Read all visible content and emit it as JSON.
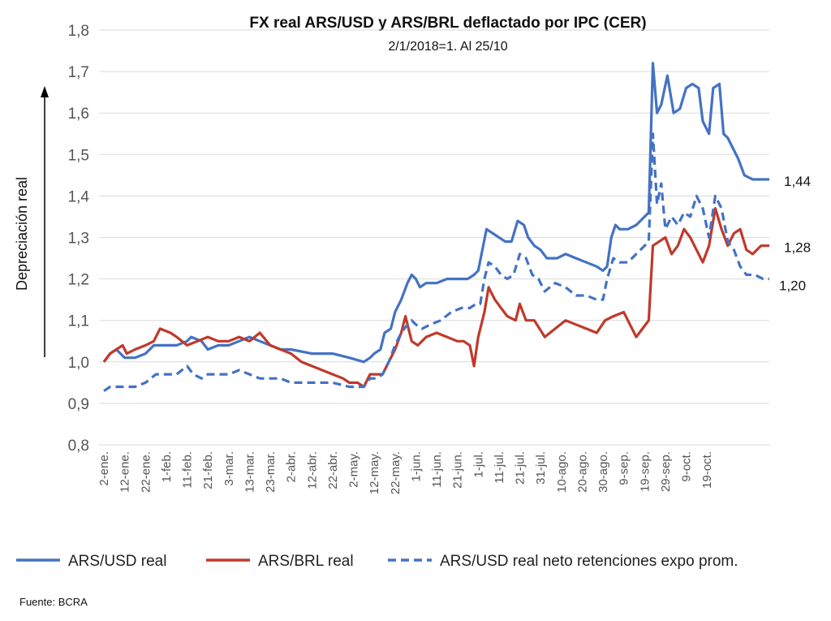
{
  "chart_data": {
    "type": "line",
    "title": "FX real ARS/USD y ARS/BRL deflactado por IPC (CER)",
    "subtitle": "2/1/2018=1.  Al 25/10",
    "ylabel": "Depreciación real",
    "ylim": [
      0.8,
      1.8
    ],
    "yticks": [
      "0,8",
      "0,9",
      "1,0",
      "1,1",
      "1,2",
      "1,3",
      "1,4",
      "1,5",
      "1,6",
      "1,7",
      "1,8"
    ],
    "ytick_values": [
      0.8,
      0.9,
      1.0,
      1.1,
      1.2,
      1.3,
      1.4,
      1.5,
      1.6,
      1.7,
      1.8
    ],
    "x_range_days": [
      0,
      296
    ],
    "x_tick_labels": [
      "2-ene.",
      "12-ene.",
      "22-ene.",
      "1-feb.",
      "11-feb.",
      "21-feb.",
      "3-mar.",
      "13-mar.",
      "23-mar.",
      "2-abr.",
      "12-abr.",
      "22-abr.",
      "2-may.",
      "12-may.",
      "22-may.",
      "1-jun.",
      "11-jun.",
      "21-jun.",
      "1-jul.",
      "11-jul.",
      "21-jul.",
      "31-jul.",
      "10-ago.",
      "20-ago.",
      "30-ago.",
      "9-sep.",
      "19-sep.",
      "29-sep.",
      "9-oct.",
      "19-oct."
    ],
    "grid": "horizontal",
    "legend_position": "bottom",
    "series": [
      {
        "name": "ARS/USD real",
        "color": "#4472C4",
        "dash": "solid",
        "end_label": "1,44",
        "points": [
          [
            0,
            1.0
          ],
          [
            3,
            1.02
          ],
          [
            6,
            1.03
          ],
          [
            10,
            1.01
          ],
          [
            15,
            1.01
          ],
          [
            20,
            1.02
          ],
          [
            24,
            1.04
          ],
          [
            30,
            1.04
          ],
          [
            35,
            1.04
          ],
          [
            40,
            1.05
          ],
          [
            42,
            1.06
          ],
          [
            47,
            1.05
          ],
          [
            50,
            1.03
          ],
          [
            55,
            1.04
          ],
          [
            60,
            1.04
          ],
          [
            65,
            1.05
          ],
          [
            70,
            1.06
          ],
          [
            75,
            1.05
          ],
          [
            80,
            1.04
          ],
          [
            85,
            1.03
          ],
          [
            90,
            1.03
          ],
          [
            100,
            1.02
          ],
          [
            110,
            1.02
          ],
          [
            118,
            1.01
          ],
          [
            125,
            1.0
          ],
          [
            128,
            1.01
          ],
          [
            130,
            1.02
          ],
          [
            133,
            1.03
          ],
          [
            135,
            1.07
          ],
          [
            138,
            1.08
          ],
          [
            140,
            1.12
          ],
          [
            143,
            1.15
          ],
          [
            146,
            1.19
          ],
          [
            148,
            1.21
          ],
          [
            150,
            1.2
          ],
          [
            152,
            1.18
          ],
          [
            155,
            1.19
          ],
          [
            160,
            1.19
          ],
          [
            165,
            1.2
          ],
          [
            170,
            1.2
          ],
          [
            175,
            1.2
          ],
          [
            178,
            1.21
          ],
          [
            180,
            1.22
          ],
          [
            182,
            1.27
          ],
          [
            184,
            1.32
          ],
          [
            187,
            1.31
          ],
          [
            190,
            1.3
          ],
          [
            193,
            1.29
          ],
          [
            196,
            1.29
          ],
          [
            199,
            1.34
          ],
          [
            202,
            1.33
          ],
          [
            204,
            1.3
          ],
          [
            207,
            1.28
          ],
          [
            210,
            1.27
          ],
          [
            213,
            1.25
          ],
          [
            218,
            1.25
          ],
          [
            222,
            1.26
          ],
          [
            227,
            1.25
          ],
          [
            232,
            1.24
          ],
          [
            237,
            1.23
          ],
          [
            240,
            1.22
          ],
          [
            242,
            1.23
          ],
          [
            244,
            1.3
          ],
          [
            246,
            1.33
          ],
          [
            248,
            1.32
          ],
          [
            252,
            1.32
          ],
          [
            256,
            1.33
          ],
          [
            260,
            1.35
          ],
          [
            262,
            1.36
          ],
          [
            264,
            1.72
          ],
          [
            266,
            1.6
          ],
          [
            268,
            1.62
          ],
          [
            271,
            1.69
          ],
          [
            274,
            1.6
          ],
          [
            277,
            1.61
          ],
          [
            280,
            1.66
          ],
          [
            283,
            1.67
          ],
          [
            286,
            1.66
          ],
          [
            288,
            1.58
          ],
          [
            291,
            1.55
          ],
          [
            293,
            1.66
          ],
          [
            296,
            1.67
          ],
          [
            298,
            1.55
          ],
          [
            300,
            1.54
          ],
          [
            302,
            1.52
          ],
          [
            305,
            1.49
          ],
          [
            308,
            1.45
          ],
          [
            312,
            1.44
          ],
          [
            316,
            1.44
          ],
          [
            320,
            1.44
          ]
        ]
      },
      {
        "name": "ARS/BRL real",
        "color": "#C0392B",
        "dash": "solid",
        "end_label": "1,28",
        "points": [
          [
            0,
            1.0
          ],
          [
            3,
            1.02
          ],
          [
            6,
            1.03
          ],
          [
            9,
            1.04
          ],
          [
            11,
            1.02
          ],
          [
            15,
            1.03
          ],
          [
            20,
            1.04
          ],
          [
            24,
            1.05
          ],
          [
            27,
            1.08
          ],
          [
            32,
            1.07
          ],
          [
            35,
            1.06
          ],
          [
            40,
            1.04
          ],
          [
            45,
            1.05
          ],
          [
            50,
            1.06
          ],
          [
            55,
            1.05
          ],
          [
            60,
            1.05
          ],
          [
            65,
            1.06
          ],
          [
            70,
            1.05
          ],
          [
            75,
            1.07
          ],
          [
            80,
            1.04
          ],
          [
            85,
            1.03
          ],
          [
            90,
            1.02
          ],
          [
            95,
            1.0
          ],
          [
            100,
            0.99
          ],
          [
            105,
            0.98
          ],
          [
            110,
            0.97
          ],
          [
            115,
            0.96
          ],
          [
            118,
            0.95
          ],
          [
            122,
            0.95
          ],
          [
            125,
            0.94
          ],
          [
            128,
            0.97
          ],
          [
            131,
            0.97
          ],
          [
            134,
            0.97
          ],
          [
            137,
            1.0
          ],
          [
            140,
            1.03
          ],
          [
            143,
            1.07
          ],
          [
            145,
            1.11
          ],
          [
            148,
            1.05
          ],
          [
            151,
            1.04
          ],
          [
            155,
            1.06
          ],
          [
            160,
            1.07
          ],
          [
            165,
            1.06
          ],
          [
            170,
            1.05
          ],
          [
            173,
            1.05
          ],
          [
            176,
            1.04
          ],
          [
            178,
            0.99
          ],
          [
            180,
            1.06
          ],
          [
            183,
            1.12
          ],
          [
            185,
            1.18
          ],
          [
            188,
            1.15
          ],
          [
            191,
            1.13
          ],
          [
            194,
            1.11
          ],
          [
            198,
            1.1
          ],
          [
            200,
            1.14
          ],
          [
            203,
            1.1
          ],
          [
            207,
            1.1
          ],
          [
            212,
            1.06
          ],
          [
            217,
            1.08
          ],
          [
            222,
            1.1
          ],
          [
            227,
            1.09
          ],
          [
            232,
            1.08
          ],
          [
            237,
            1.07
          ],
          [
            241,
            1.1
          ],
          [
            245,
            1.11
          ],
          [
            250,
            1.12
          ],
          [
            253,
            1.09
          ],
          [
            256,
            1.06
          ],
          [
            259,
            1.08
          ],
          [
            262,
            1.1
          ],
          [
            264,
            1.28
          ],
          [
            267,
            1.29
          ],
          [
            270,
            1.3
          ],
          [
            273,
            1.26
          ],
          [
            276,
            1.28
          ],
          [
            279,
            1.32
          ],
          [
            282,
            1.3
          ],
          [
            285,
            1.27
          ],
          [
            288,
            1.24
          ],
          [
            291,
            1.28
          ],
          [
            294,
            1.37
          ],
          [
            297,
            1.32
          ],
          [
            300,
            1.28
          ],
          [
            303,
            1.31
          ],
          [
            306,
            1.32
          ],
          [
            309,
            1.27
          ],
          [
            312,
            1.26
          ],
          [
            316,
            1.28
          ],
          [
            320,
            1.28
          ]
        ]
      },
      {
        "name": "ARS/USD real neto retenciones expo prom.",
        "color": "#4472C4",
        "dash": "dashed",
        "end_label": "1,20",
        "points": [
          [
            0,
            0.93
          ],
          [
            3,
            0.94
          ],
          [
            6,
            0.94
          ],
          [
            10,
            0.94
          ],
          [
            15,
            0.94
          ],
          [
            20,
            0.95
          ],
          [
            25,
            0.97
          ],
          [
            30,
            0.97
          ],
          [
            35,
            0.97
          ],
          [
            40,
            0.99
          ],
          [
            43,
            0.97
          ],
          [
            47,
            0.96
          ],
          [
            50,
            0.97
          ],
          [
            55,
            0.97
          ],
          [
            60,
            0.97
          ],
          [
            65,
            0.98
          ],
          [
            70,
            0.97
          ],
          [
            75,
            0.96
          ],
          [
            80,
            0.96
          ],
          [
            85,
            0.96
          ],
          [
            90,
            0.95
          ],
          [
            100,
            0.95
          ],
          [
            110,
            0.95
          ],
          [
            118,
            0.94
          ],
          [
            125,
            0.94
          ],
          [
            128,
            0.96
          ],
          [
            131,
            0.96
          ],
          [
            134,
            0.97
          ],
          [
            137,
            1.0
          ],
          [
            140,
            1.04
          ],
          [
            143,
            1.07
          ],
          [
            146,
            1.09
          ],
          [
            148,
            1.1
          ],
          [
            150,
            1.09
          ],
          [
            153,
            1.08
          ],
          [
            157,
            1.09
          ],
          [
            162,
            1.1
          ],
          [
            167,
            1.12
          ],
          [
            172,
            1.13
          ],
          [
            176,
            1.13
          ],
          [
            179,
            1.14
          ],
          [
            181,
            1.14
          ],
          [
            183,
            1.2
          ],
          [
            185,
            1.24
          ],
          [
            188,
            1.23
          ],
          [
            191,
            1.21
          ],
          [
            194,
            1.2
          ],
          [
            197,
            1.21
          ],
          [
            200,
            1.26
          ],
          [
            203,
            1.25
          ],
          [
            206,
            1.21
          ],
          [
            209,
            1.2
          ],
          [
            212,
            1.17
          ],
          [
            217,
            1.19
          ],
          [
            222,
            1.18
          ],
          [
            227,
            1.16
          ],
          [
            232,
            1.16
          ],
          [
            237,
            1.15
          ],
          [
            240,
            1.15
          ],
          [
            242,
            1.2
          ],
          [
            245,
            1.25
          ],
          [
            248,
            1.24
          ],
          [
            252,
            1.24
          ],
          [
            256,
            1.26
          ],
          [
            260,
            1.28
          ],
          [
            262,
            1.29
          ],
          [
            264,
            1.55
          ],
          [
            266,
            1.38
          ],
          [
            268,
            1.43
          ],
          [
            270,
            1.32
          ],
          [
            273,
            1.35
          ],
          [
            276,
            1.33
          ],
          [
            279,
            1.36
          ],
          [
            282,
            1.35
          ],
          [
            285,
            1.4
          ],
          [
            288,
            1.37
          ],
          [
            291,
            1.3
          ],
          [
            294,
            1.4
          ],
          [
            297,
            1.37
          ],
          [
            300,
            1.29
          ],
          [
            303,
            1.27
          ],
          [
            306,
            1.23
          ],
          [
            309,
            1.21
          ],
          [
            313,
            1.21
          ],
          [
            317,
            1.2
          ],
          [
            320,
            1.2
          ]
        ]
      }
    ]
  },
  "source": "Fuente:  BCRA"
}
